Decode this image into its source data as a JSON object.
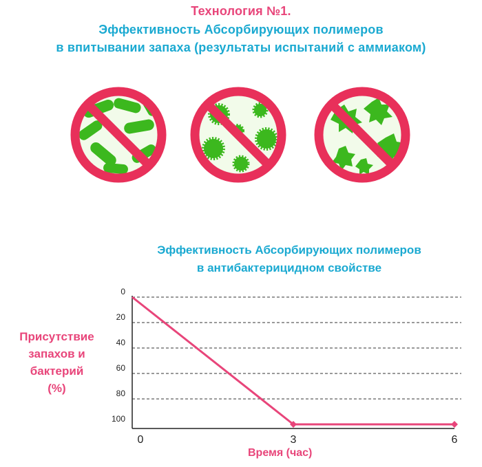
{
  "header": {
    "title": "Технология №1.",
    "subtitle_line1": "Эффективность Абсорбирующих полимеров",
    "subtitle_line2": "в впитывании запаха (результаты испытаний с аммиаком)"
  },
  "icons": [
    {
      "name": "no-rod-bacteria-icon"
    },
    {
      "name": "no-spiky-virus-icon"
    },
    {
      "name": "no-amoeba-germ-icon"
    }
  ],
  "colors": {
    "pink": "#e8457a",
    "blue": "#1aa9d1",
    "stop_red": "#e8305a",
    "germ_green": "#3cb81e"
  },
  "chart_data": {
    "type": "line",
    "title": [
      "Эффективность Абсорбирующих полимеров",
      "в антибактерицидном свойстве"
    ],
    "ylabel": [
      "Присутствие",
      "запахов и",
      "бактерий",
      "(%)"
    ],
    "xlabel": "Время (час)",
    "y_ticks": [
      0,
      20,
      40,
      60,
      80,
      100
    ],
    "y_inverted": true,
    "ylim": [
      0,
      100
    ],
    "x_ticks": [
      0,
      3,
      6
    ],
    "xlim": [
      0,
      6
    ],
    "grid": "horizontal dashed",
    "series": [
      {
        "x": [
          0,
          3,
          6
        ],
        "y": [
          0,
          100,
          100
        ]
      }
    ]
  }
}
